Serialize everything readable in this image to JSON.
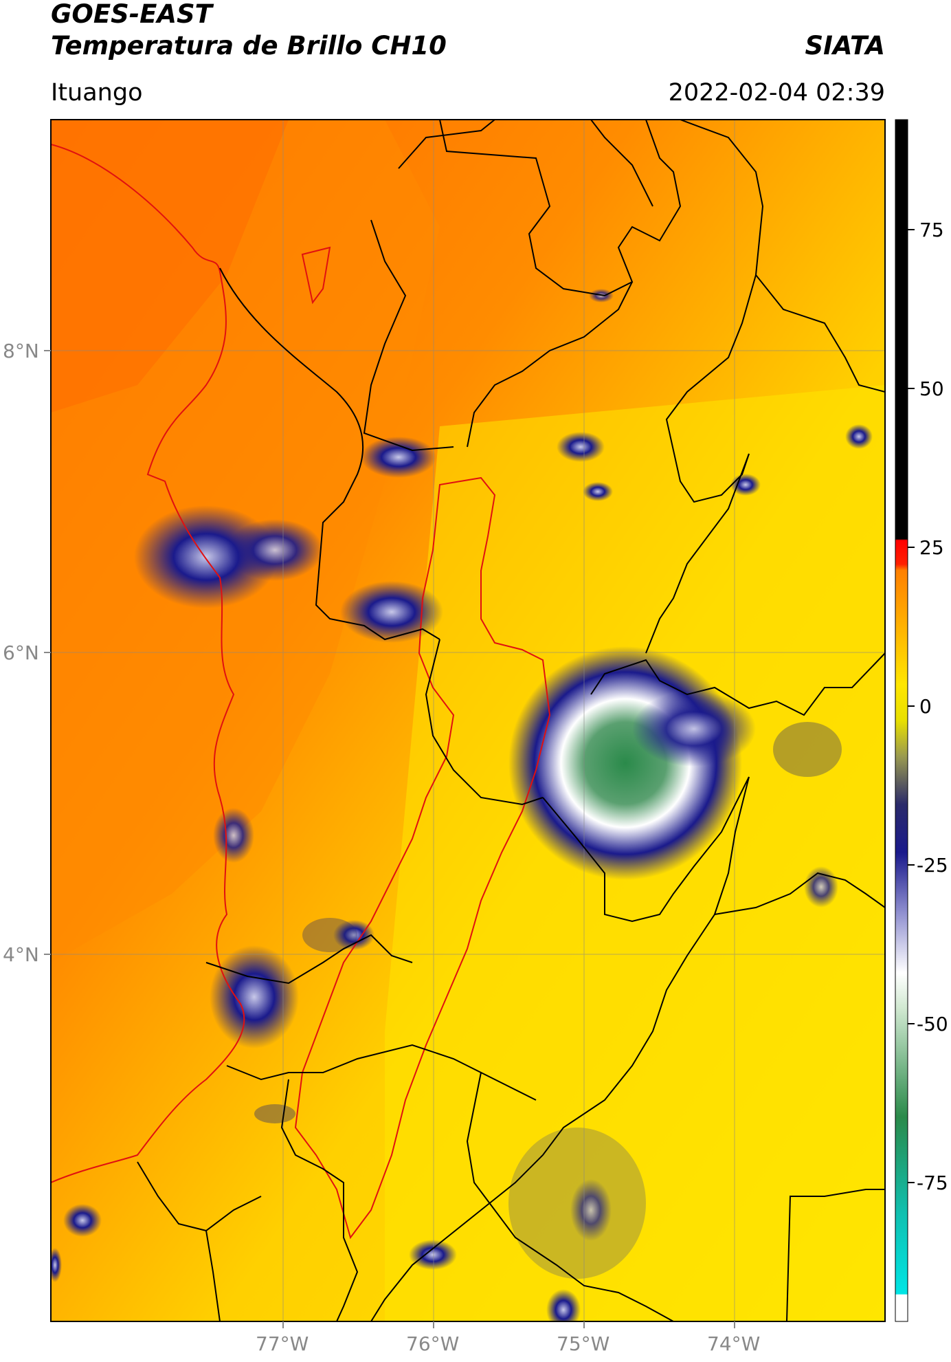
{
  "header": {
    "title_line1": "GOES-EAST",
    "title_line2": "Temperatura de Brillo CH10",
    "brand": "SIATA",
    "region": "Ituango",
    "timestamp": "2022-02-04 02:39"
  },
  "map": {
    "lat_labels": [
      "8°N",
      "6°N",
      "4°N"
    ],
    "lon_labels": [
      "77°W",
      "76°W",
      "75°W",
      "74°W"
    ]
  },
  "colorbar": {
    "ticks": [
      "75",
      "50",
      "25",
      "0",
      "-25",
      "-50",
      "-75"
    ],
    "colors": [
      "#ffffff",
      "#00e5e5",
      "#2a8a4a",
      "#ffffff",
      "#1a1a8c",
      "#ffe600",
      "#ff8c00",
      "#ff0000",
      "#000000"
    ]
  }
}
